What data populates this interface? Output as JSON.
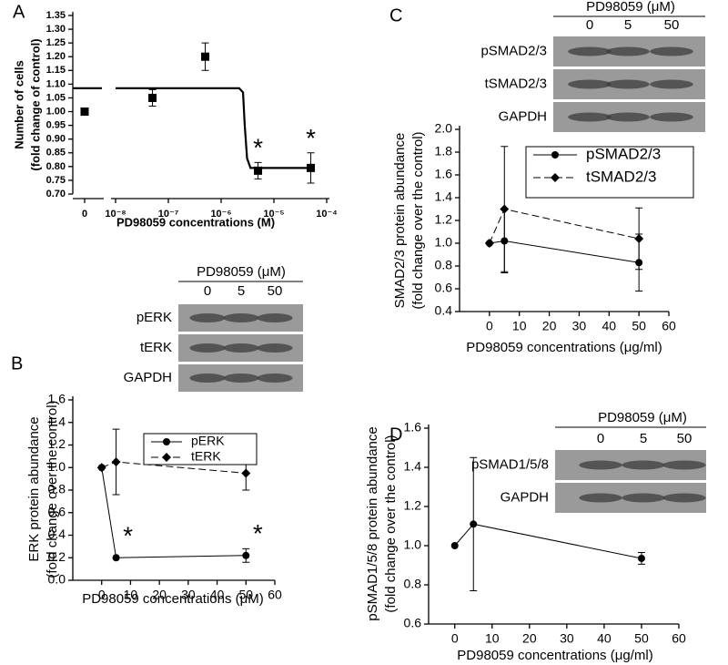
{
  "chart_data": [
    {
      "panel": "A",
      "type": "scatter",
      "xscale": "log",
      "ylabel": [
        "Number of cells",
        "(fold change of control)"
      ],
      "xlabel": "PD98059 concentrations (M)",
      "xlim": [
        1e-08,
        0.0001
      ],
      "ylim": [
        0.7,
        1.35
      ],
      "xticks": [
        0,
        {
          "value": 1e-08,
          "label": "10⁻⁸"
        },
        {
          "value": 1e-07,
          "label": "10⁻⁷"
        },
        {
          "value": 1e-06,
          "label": "10⁻⁶"
        },
        {
          "value": 1e-05,
          "label": "10⁻⁵"
        },
        {
          "value": 0.0001,
          "label": "10⁻⁴"
        }
      ],
      "yticks": [
        {
          "value": 0.7,
          "label": "0.70"
        },
        0.75,
        {
          "value": 0.8,
          "label": "0.80"
        },
        0.85,
        {
          "value": 0.9,
          "label": "0.90"
        },
        0.95,
        {
          "value": 1,
          "label": "1.00"
        },
        1.05,
        {
          "value": 1.1,
          "label": "1.10"
        },
        1.15,
        {
          "value": 1.2,
          "label": "1.20"
        },
        1.25,
        {
          "value": 1.3,
          "label": "1.30"
        },
        1.35
      ],
      "series": [
        {
          "color": "#000000",
          "marker": "square",
          "x": [
            0,
            5e-08,
            5e-07,
            5e-06,
            5e-05
          ],
          "values": [
            1.0,
            1.05,
            1.2,
            0.785,
            0.795
          ],
          "errors": [
            null,
            0.03,
            0.05,
            0.03,
            0.055
          ],
          "point_labels": [
            null,
            null,
            null,
            "*",
            "*"
          ]
        },
        {
          "color": "#000000",
          "marker": "none",
          "line": "solid",
          "x": [
            1e-08,
            2.2e-06,
            2.6e-06,
            2.8e-06,
            3.1e-06,
            3.6e-06,
            5e-05
          ],
          "values": [
            1.085,
            1.085,
            1.07,
            0.95,
            0.83,
            0.795,
            0.795
          ]
        }
      ]
    },
    {
      "panel": "B",
      "type": "line",
      "ylabel": [
        "ERK protein abundance",
        "(fold change over the control)"
      ],
      "xlabel": "PD98059 concentrations (μM)",
      "xlim": [
        -10,
        60
      ],
      "ylim": [
        0,
        1.6
      ],
      "xticks": [
        0,
        10,
        20,
        30,
        40,
        50,
        60
      ],
      "yticks": [
        {
          "value": 0,
          "label": "0.0"
        },
        0.2,
        0.4,
        0.6,
        0.8,
        {
          "value": 1,
          "label": "1.0"
        },
        1.2,
        1.4,
        1.6
      ],
      "x": [
        0,
        5,
        50
      ],
      "legend": "upper center",
      "series": [
        {
          "name": "pERK",
          "color": "#000000",
          "marker": "circle",
          "line": "solid",
          "values": [
            1.0,
            0.2,
            0.22
          ],
          "errors": [
            null,
            null,
            0.06
          ],
          "point_labels": [
            null,
            "*",
            "*"
          ]
        },
        {
          "name": "tERK",
          "color": "#000000",
          "marker": "diamond",
          "line": "dashed",
          "values": [
            1.0,
            1.05,
            0.95
          ],
          "errors": [
            null,
            0.29,
            0.15
          ]
        }
      ],
      "blot": {
        "title": "PD98059 (μM)",
        "lanes": [
          "0",
          "5",
          "50"
        ],
        "rows": [
          "pERK",
          "tERK",
          "GAPDH"
        ]
      }
    },
    {
      "panel": "C",
      "type": "line",
      "ylabel": [
        "SMAD2/3 protein abundance",
        "(fold change over the control)"
      ],
      "xlabel": "PD98059 concentrations (μg/ml)",
      "xlim": [
        -10,
        60
      ],
      "ylim": [
        0.4,
        2.0
      ],
      "xticks": [
        0,
        10,
        20,
        30,
        40,
        50,
        60
      ],
      "yticks": [
        0.4,
        0.6,
        0.8,
        {
          "value": 1,
          "label": "1.0"
        },
        1.2,
        1.4,
        1.6,
        1.8,
        {
          "value": 2,
          "label": "2.0"
        }
      ],
      "x": [
        0,
        5,
        50
      ],
      "legend": "upper right",
      "series": [
        {
          "name": "pSMAD2/3",
          "color": "#000000",
          "marker": "circle",
          "line": "solid",
          "values": [
            1.0,
            1.02,
            0.83
          ],
          "errors": [
            null,
            0.28,
            0.25
          ]
        },
        {
          "name": "tSMAD2/3",
          "color": "#000000",
          "marker": "diamond",
          "line": "dashed",
          "values": [
            1.0,
            1.3,
            1.04
          ],
          "errors": [
            null,
            0.55,
            0.27
          ]
        }
      ],
      "blot": {
        "title": "PD98059 (μM)",
        "lanes": [
          "0",
          "5",
          "50"
        ],
        "rows": [
          "pSMAD2/3",
          "tSMAD2/3",
          "GAPDH"
        ]
      }
    },
    {
      "panel": "D",
      "type": "line",
      "ylabel": [
        "pSMAD1/5/8 protein abundance",
        "(fold change over the control)"
      ],
      "xlabel": "PD98059 concentrations (μg/ml)",
      "xlim": [
        -7,
        60
      ],
      "ylim": [
        0.6,
        1.6
      ],
      "xticks": [
        0,
        10,
        20,
        30,
        40,
        50,
        60
      ],
      "yticks": [
        0.6,
        0.8,
        {
          "value": 1,
          "label": "1.0"
        },
        1.2,
        1.4,
        1.6
      ],
      "x": [
        0,
        5,
        50
      ],
      "series": [
        {
          "color": "#000000",
          "marker": "circle",
          "line": "solid",
          "values": [
            1.0,
            1.11,
            0.935
          ],
          "errors": [
            null,
            0.34,
            0.03
          ]
        }
      ],
      "blot": {
        "title": "PD98059 (μM)",
        "lanes": [
          "0",
          "5",
          "50"
        ],
        "rows": [
          "pSMAD1/5/8",
          "GAPDH"
        ]
      }
    }
  ]
}
